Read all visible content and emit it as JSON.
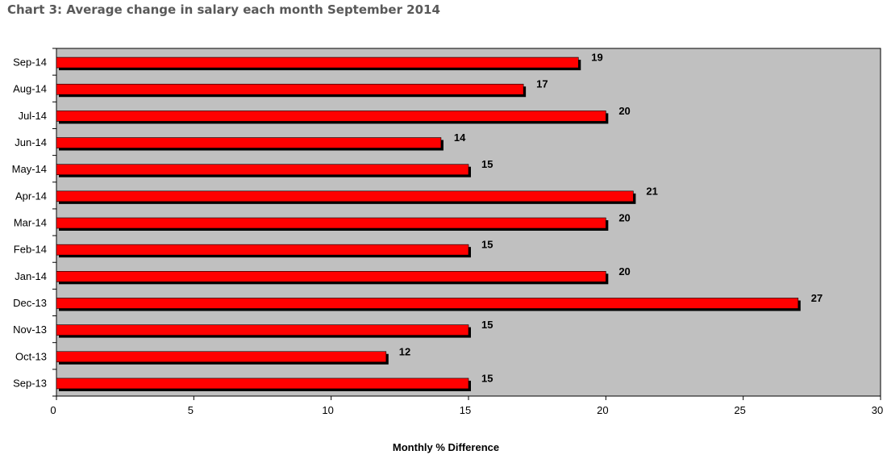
{
  "chart_data": {
    "type": "bar",
    "orientation": "horizontal",
    "title": "Chart 3: Average change in salary each month September 2014",
    "xlabel": "Monthly % Difference",
    "ylabel": "",
    "categories": [
      "Sep-14",
      "Aug-14",
      "Jul-14",
      "Jun-14",
      "May-14",
      "Apr-14",
      "Mar-14",
      "Feb-14",
      "Jan-14",
      "Dec-13",
      "Nov-13",
      "Oct-13",
      "Sep-13"
    ],
    "values": [
      19,
      17,
      20,
      14,
      15,
      21,
      20,
      15,
      20,
      27,
      15,
      12,
      15
    ],
    "xlim": [
      0,
      30
    ],
    "xticks": [
      0,
      5,
      10,
      15,
      20,
      25,
      30
    ],
    "grid": false,
    "legend": "none",
    "colors": {
      "bar": "#ff0000",
      "shadow": "#000000",
      "plot_bg": "#c0c0c0"
    }
  }
}
